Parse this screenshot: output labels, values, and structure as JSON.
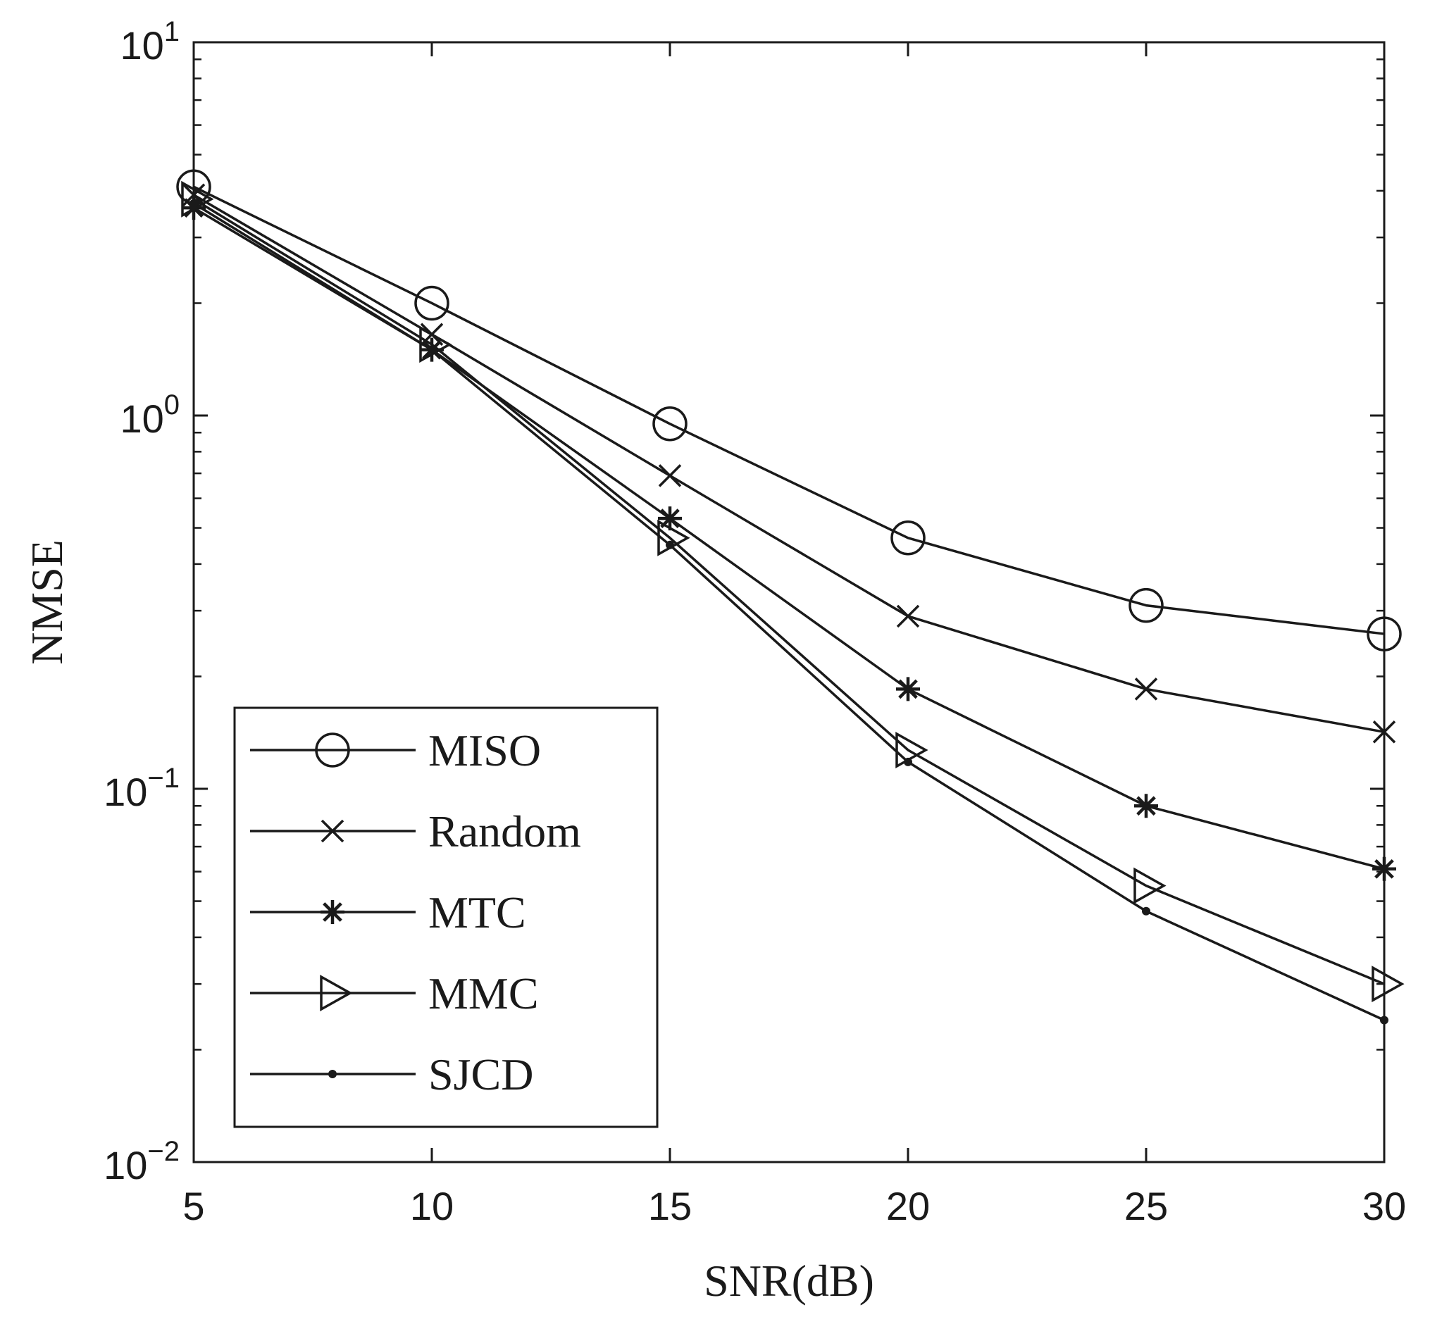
{
  "chart_data": {
    "type": "line",
    "title": "",
    "xlabel": "SNR(dB)",
    "ylabel": "NMSE",
    "yscale": "log",
    "xlim": [
      5,
      30
    ],
    "ylim": [
      0.01,
      10
    ],
    "grid": false,
    "legend_position": "bottom-left",
    "x": [
      5,
      10,
      15,
      20,
      25,
      30
    ],
    "x_tick_labels": [
      "5",
      "10",
      "15",
      "20",
      "25",
      "30"
    ],
    "y_ticks": [
      {
        "value": 10,
        "base": "10",
        "exp": "1"
      },
      {
        "value": 1,
        "base": "10",
        "exp": "0"
      },
      {
        "value": 0.1,
        "base": "10",
        "exp": "−1"
      },
      {
        "value": 0.01,
        "base": "10",
        "exp": "−2"
      }
    ],
    "series": [
      {
        "name": "MISO",
        "marker": "circle",
        "values": [
          4.1,
          2.0,
          0.95,
          0.47,
          0.31,
          0.26
        ]
      },
      {
        "name": "Random",
        "marker": "x",
        "values": [
          3.9,
          1.65,
          0.69,
          0.29,
          0.185,
          0.142
        ]
      },
      {
        "name": "MTC",
        "marker": "asterisk",
        "values": [
          3.6,
          1.5,
          0.53,
          0.185,
          0.09,
          0.061
        ]
      },
      {
        "name": "MMC",
        "marker": "triangle-right",
        "values": [
          3.8,
          1.55,
          0.47,
          0.127,
          0.055,
          0.03
        ]
      },
      {
        "name": "SJCD",
        "marker": "dot",
        "values": [
          3.7,
          1.5,
          0.45,
          0.118,
          0.047,
          0.024
        ]
      }
    ]
  }
}
